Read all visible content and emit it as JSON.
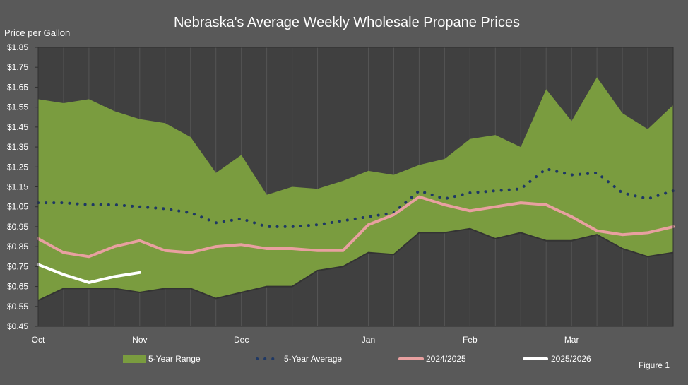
{
  "colors": {
    "background": "#595959",
    "plot_background": "#404040",
    "range_fill": "#7a9c3f",
    "range_edge": "#333333",
    "average": "#1f3864",
    "series_2024": "#e8a0a0",
    "series_2025": "#ffffff",
    "gridline": "#555555",
    "text": "#ffffff"
  },
  "figure_label": "Figure 1",
  "chart_data": {
    "type": "area",
    "title": "Nebraska's Average Weekly Wholesale Propane Prices",
    "ylabel": "Price per Gallon",
    "xlabel": "",
    "ylim": [
      0.45,
      1.85
    ],
    "yticks": [
      0.45,
      0.55,
      0.65,
      0.75,
      0.85,
      0.95,
      1.05,
      1.15,
      1.25,
      1.35,
      1.45,
      1.55,
      1.65,
      1.75,
      1.85
    ],
    "ytick_labels": [
      "$0.45",
      "$0.55",
      "$0.65",
      "$0.75",
      "$0.85",
      "$0.95",
      "$1.05",
      "$1.15",
      "$1.25",
      "$1.35",
      "$1.45",
      "$1.55",
      "$1.65",
      "$1.75",
      "$1.85"
    ],
    "x_count": 26,
    "x_month_labels": [
      {
        "label": "Oct",
        "index": 0
      },
      {
        "label": "Nov",
        "index": 4
      },
      {
        "label": "Dec",
        "index": 8
      },
      {
        "label": "Jan",
        "index": 13
      },
      {
        "label": "Feb",
        "index": 17
      },
      {
        "label": "Mar",
        "index": 21
      }
    ],
    "grid": true,
    "legend_position": "bottom",
    "legend": [
      {
        "name": "5-Year Range",
        "style": "area"
      },
      {
        "name": "5-Year Average",
        "style": "dotted"
      },
      {
        "name": "2024/2025",
        "style": "line"
      },
      {
        "name": "2025/2026",
        "style": "line"
      }
    ],
    "range": {
      "name": "5-Year Range",
      "high": [
        1.59,
        1.57,
        1.59,
        1.53,
        1.49,
        1.47,
        1.4,
        1.22,
        1.31,
        1.11,
        1.15,
        1.14,
        1.18,
        1.23,
        1.21,
        1.26,
        1.29,
        1.39,
        1.41,
        1.35,
        1.64,
        1.48,
        1.7,
        1.52,
        1.44,
        1.56
      ],
      "low": [
        0.58,
        0.64,
        0.64,
        0.64,
        0.62,
        0.64,
        0.64,
        0.59,
        0.62,
        0.65,
        0.65,
        0.73,
        0.75,
        0.82,
        0.81,
        0.92,
        0.92,
        0.94,
        0.89,
        0.92,
        0.88,
        0.88,
        0.91,
        0.84,
        0.8,
        0.82
      ]
    },
    "series": [
      {
        "name": "5-Year Average",
        "values": [
          1.07,
          1.07,
          1.06,
          1.06,
          1.05,
          1.04,
          1.02,
          0.97,
          0.99,
          0.95,
          0.95,
          0.96,
          0.98,
          1.0,
          1.02,
          1.13,
          1.09,
          1.12,
          1.13,
          1.14,
          1.24,
          1.21,
          1.22,
          1.12,
          1.09,
          1.13
        ]
      },
      {
        "name": "2024/2025",
        "values": [
          0.89,
          0.82,
          0.8,
          0.85,
          0.88,
          0.83,
          0.82,
          0.85,
          0.86,
          0.84,
          0.84,
          0.83,
          0.83,
          0.96,
          1.01,
          1.1,
          1.06,
          1.03,
          1.05,
          1.07,
          1.06,
          1.0,
          0.93,
          0.91,
          0.92,
          0.95
        ]
      },
      {
        "name": "2025/2026",
        "values": [
          0.76,
          0.71,
          0.67,
          0.7,
          0.72
        ]
      }
    ]
  }
}
